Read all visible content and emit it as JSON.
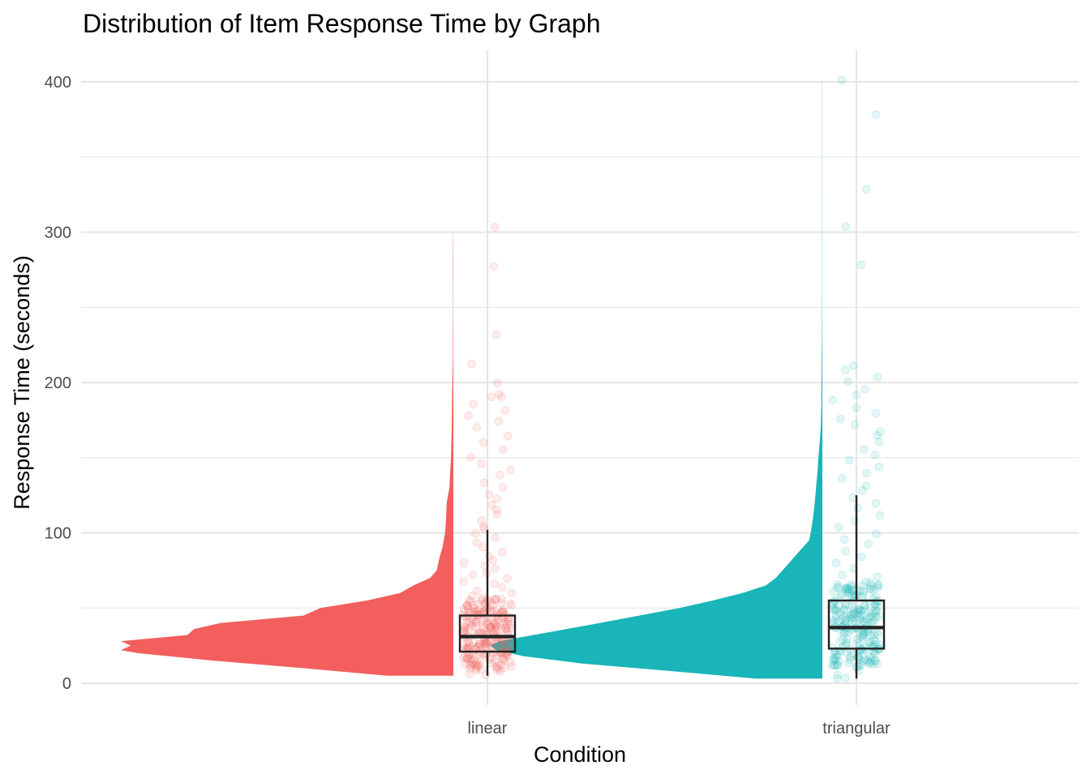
{
  "chart_data": {
    "type": "raincloud",
    "title": "Distribution of Item Response Time by Graph",
    "xlabel": "Condition",
    "ylabel": "Response Time (seconds)",
    "categories": [
      "linear",
      "triangular"
    ],
    "ylim": [
      -10,
      420
    ],
    "yticks": [
      0,
      100,
      200,
      300,
      400
    ],
    "grid": true,
    "legend": "none",
    "colors": {
      "linear": "#F25F5C",
      "triangular": "#19B5B8",
      "box": "#222222",
      "grid": "#E6E6E6"
    },
    "series": [
      {
        "category": "linear",
        "box": {
          "q1": 21,
          "median": 31,
          "q3": 45,
          "whisker_low": 5,
          "whisker_high": 102
        },
        "density": [
          [
            5,
            0.2
          ],
          [
            10,
            0.45
          ],
          [
            15,
            0.72
          ],
          [
            20,
            0.95
          ],
          [
            22,
            1.0
          ],
          [
            25,
            0.97
          ],
          [
            28,
            1.0
          ],
          [
            32,
            0.8
          ],
          [
            36,
            0.78
          ],
          [
            40,
            0.7
          ],
          [
            45,
            0.45
          ],
          [
            50,
            0.4
          ],
          [
            55,
            0.26
          ],
          [
            60,
            0.16
          ],
          [
            65,
            0.12
          ],
          [
            70,
            0.07
          ],
          [
            75,
            0.05
          ],
          [
            80,
            0.045
          ],
          [
            85,
            0.04
          ],
          [
            90,
            0.033
          ],
          [
            100,
            0.025
          ],
          [
            110,
            0.022
          ],
          [
            120,
            0.02
          ],
          [
            130,
            0.012
          ],
          [
            150,
            0.007
          ],
          [
            170,
            0.005
          ],
          [
            190,
            0.004
          ],
          [
            200,
            0.003
          ],
          [
            215,
            0.0015
          ],
          [
            230,
            0.0015
          ],
          [
            250,
            0.0007
          ],
          [
            280,
            0.0012
          ],
          [
            300,
            0.0006
          ],
          [
            303,
            0
          ]
        ],
        "points": [
          303,
          278,
          232,
          213,
          200,
          192,
          190,
          190,
          186,
          182,
          178,
          174,
          170,
          165,
          160,
          155,
          150,
          146,
          142,
          138,
          134,
          130,
          126,
          122,
          118,
          115,
          112,
          108,
          105,
          102,
          99,
          96,
          93,
          90,
          87,
          85,
          82,
          80,
          78,
          76,
          74,
          72,
          70,
          68,
          66,
          64,
          62,
          60,
          58,
          56,
          54,
          52,
          51,
          50,
          49,
          48,
          47,
          46,
          45,
          44,
          43,
          42,
          41,
          40,
          39,
          38,
          37,
          36,
          35,
          34,
          33,
          32,
          31,
          30,
          29,
          28,
          27,
          26,
          25,
          24,
          23,
          22,
          21,
          20,
          19,
          18,
          17,
          16,
          15,
          14,
          13,
          12,
          11,
          10,
          9,
          8,
          7,
          6,
          5,
          30,
          28,
          26,
          24,
          22,
          20,
          18,
          32,
          34,
          36,
          38,
          40,
          25,
          27,
          29,
          31,
          33,
          35,
          37,
          21,
          23
        ]
      },
      {
        "category": "triangular",
        "box": {
          "q1": 23,
          "median": 37,
          "q3": 55,
          "whisker_low": 3,
          "whisker_high": 125
        },
        "density": [
          [
            3,
            0.2
          ],
          [
            8,
            0.45
          ],
          [
            13,
            0.72
          ],
          [
            18,
            0.9
          ],
          [
            22,
            0.98
          ],
          [
            25,
            1.0
          ],
          [
            28,
            0.97
          ],
          [
            32,
            0.87
          ],
          [
            36,
            0.77
          ],
          [
            40,
            0.67
          ],
          [
            45,
            0.55
          ],
          [
            50,
            0.43
          ],
          [
            55,
            0.33
          ],
          [
            60,
            0.24
          ],
          [
            65,
            0.17
          ],
          [
            70,
            0.14
          ],
          [
            75,
            0.12
          ],
          [
            80,
            0.1
          ],
          [
            85,
            0.08
          ],
          [
            90,
            0.06
          ],
          [
            95,
            0.04
          ],
          [
            100,
            0.035
          ],
          [
            110,
            0.028
          ],
          [
            120,
            0.023
          ],
          [
            130,
            0.019
          ],
          [
            140,
            0.015
          ],
          [
            150,
            0.012
          ],
          [
            160,
            0.008
          ],
          [
            170,
            0.005
          ],
          [
            185,
            0.003
          ],
          [
            200,
            0.0025
          ],
          [
            215,
            0.002
          ],
          [
            230,
            0.0012
          ],
          [
            260,
            0.0008
          ],
          [
            300,
            0.0008
          ],
          [
            340,
            0.0006
          ],
          [
            380,
            0.0005
          ],
          [
            400,
            0.0004
          ],
          [
            401,
            0
          ]
        ],
        "points": [
          401,
          378,
          328,
          304,
          278,
          211,
          208,
          204,
          200,
          196,
          192,
          188,
          184,
          180,
          176,
          172,
          168,
          164,
          160,
          156,
          152,
          148,
          144,
          140,
          136,
          132,
          128,
          124,
          120,
          116,
          112,
          108,
          104,
          100,
          96,
          92,
          88,
          84,
          80,
          76,
          72,
          70,
          68,
          66,
          64,
          62,
          60,
          58,
          56,
          54,
          52,
          50,
          48,
          46,
          44,
          42,
          40,
          38,
          36,
          34,
          32,
          30,
          28,
          26,
          24,
          22,
          20,
          18,
          16,
          14,
          12,
          10,
          8,
          6,
          4,
          3,
          45,
          43,
          41,
          39,
          37,
          35,
          33,
          31,
          29,
          27,
          25,
          23,
          21,
          19,
          17,
          15,
          55,
          53,
          51,
          49,
          47,
          57,
          59,
          61
        ]
      }
    ]
  }
}
